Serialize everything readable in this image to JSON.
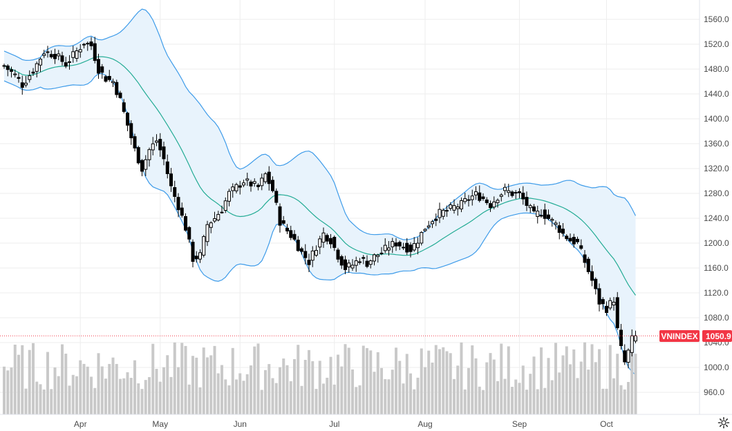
{
  "chart_data": {
    "type": "candlestick",
    "symbol": "VNINDEX",
    "last_price": "1050.9",
    "colors": {
      "up": "#ffffff",
      "down": "#000000",
      "bands": "#3d9be9",
      "band_fill": "#e8f3fc",
      "ma": "#22ab94",
      "volume": "#c9c9c9",
      "price_tag": "#f23645",
      "grid": "#eeeeee"
    },
    "ylim": [
      940,
      1580
    ],
    "yticks": [
      960,
      1000,
      1040,
      1080,
      1120,
      1160,
      1200,
      1240,
      1280,
      1320,
      1360,
      1400,
      1440,
      1480,
      1520,
      1560
    ],
    "ytick_labels": [
      "960.0",
      "1000.0",
      "1040.0",
      "1080.0",
      "1120.0",
      "1160.0",
      "1200.0",
      "1240.0",
      "1280.0",
      "1320.0",
      "1360.0",
      "1400.0",
      "1440.0",
      "1480.0",
      "1520.0",
      "1560.0"
    ],
    "months": [
      {
        "label": "Apr",
        "index": 21
      },
      {
        "label": "May",
        "index": 43
      },
      {
        "label": "Jun",
        "index": 65
      },
      {
        "label": "Jul",
        "index": 91
      },
      {
        "label": "Aug",
        "index": 116
      },
      {
        "label": "Sep",
        "index": 142
      },
      {
        "label": "Oct",
        "index": 166
      }
    ],
    "close_anchors": [
      [
        0,
        1485
      ],
      [
        3,
        1470
      ],
      [
        5,
        1455
      ],
      [
        8,
        1478
      ],
      [
        11,
        1508
      ],
      [
        14,
        1503
      ],
      [
        17,
        1488
      ],
      [
        19,
        1502
      ],
      [
        22,
        1522
      ],
      [
        24,
        1518
      ],
      [
        26,
        1480
      ],
      [
        28,
        1465
      ],
      [
        30,
        1460
      ],
      [
        32,
        1430
      ],
      [
        34,
        1390
      ],
      [
        36,
        1350
      ],
      [
        38,
        1320
      ],
      [
        40,
        1350
      ],
      [
        42,
        1365
      ],
      [
        44,
        1335
      ],
      [
        46,
        1290
      ],
      [
        48,
        1260
      ],
      [
        50,
        1225
      ],
      [
        52,
        1175
      ],
      [
        54,
        1180
      ],
      [
        56,
        1230
      ],
      [
        58,
        1240
      ],
      [
        60,
        1255
      ],
      [
        62,
        1280
      ],
      [
        64,
        1290
      ],
      [
        66,
        1300
      ],
      [
        68,
        1295
      ],
      [
        70,
        1290
      ],
      [
        72,
        1310
      ],
      [
        74,
        1285
      ],
      [
        76,
        1235
      ],
      [
        78,
        1220
      ],
      [
        80,
        1205
      ],
      [
        82,
        1185
      ],
      [
        84,
        1170
      ],
      [
        86,
        1195
      ],
      [
        88,
        1215
      ],
      [
        90,
        1205
      ],
      [
        92,
        1180
      ],
      [
        94,
        1160
      ],
      [
        96,
        1165
      ],
      [
        98,
        1175
      ],
      [
        100,
        1168
      ],
      [
        102,
        1178
      ],
      [
        104,
        1185
      ],
      [
        106,
        1195
      ],
      [
        108,
        1200
      ],
      [
        110,
        1195
      ],
      [
        112,
        1190
      ],
      [
        114,
        1205
      ],
      [
        116,
        1225
      ],
      [
        118,
        1238
      ],
      [
        120,
        1248
      ],
      [
        122,
        1252
      ],
      [
        124,
        1258
      ],
      [
        126,
        1262
      ],
      [
        128,
        1272
      ],
      [
        130,
        1278
      ],
      [
        132,
        1272
      ],
      [
        134,
        1262
      ],
      [
        136,
        1275
      ],
      [
        138,
        1285
      ],
      [
        140,
        1280
      ],
      [
        142,
        1278
      ],
      [
        144,
        1262
      ],
      [
        146,
        1245
      ],
      [
        148,
        1250
      ],
      [
        150,
        1240
      ],
      [
        152,
        1230
      ],
      [
        154,
        1215
      ],
      [
        156,
        1205
      ],
      [
        158,
        1200
      ],
      [
        160,
        1170
      ],
      [
        162,
        1140
      ],
      [
        164,
        1105
      ],
      [
        166,
        1095
      ],
      [
        168,
        1110
      ],
      [
        169,
        1060
      ],
      [
        170,
        1030
      ],
      [
        171,
        1008
      ],
      [
        172,
        1025
      ],
      [
        173,
        1045
      ],
      [
        174,
        1051
      ]
    ],
    "volume_max": 1
  }
}
